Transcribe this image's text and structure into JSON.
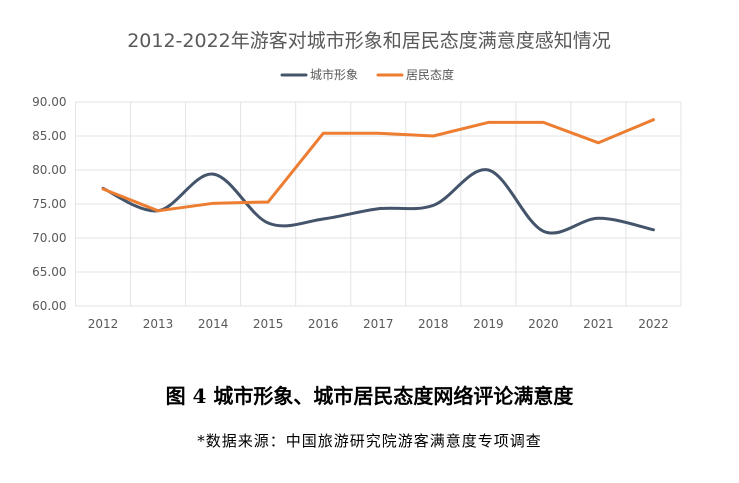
{
  "chart_data": {
    "type": "line",
    "title": "2012-2022年游客对城市形象和居民态度满意度感知情况",
    "categories": [
      "2012",
      "2013",
      "2014",
      "2015",
      "2016",
      "2017",
      "2018",
      "2019",
      "2020",
      "2021",
      "2022"
    ],
    "series": [
      {
        "name": "城市形象",
        "color": "#44546A",
        "smooth": true,
        "values": [
          77.3,
          74.0,
          79.4,
          72.2,
          72.8,
          74.3,
          74.8,
          80.0,
          71.0,
          72.9,
          71.2
        ]
      },
      {
        "name": "居民态度",
        "color": "#ED7D31",
        "smooth": false,
        "values": [
          77.2,
          74.0,
          75.1,
          75.3,
          85.4,
          85.4,
          85.0,
          87.0,
          87.0,
          84.0,
          87.4
        ]
      }
    ],
    "ylim": [
      60,
      90
    ],
    "yticks": [
      "60.00",
      "65.00",
      "70.00",
      "75.00",
      "80.00",
      "85.00",
      "90.00"
    ],
    "legend": "top",
    "grid": true
  },
  "caption": "图 4  城市形象、城市居民态度网络评论满意度",
  "source": "*数据来源：中国旅游研究院游客满意度专项调查"
}
